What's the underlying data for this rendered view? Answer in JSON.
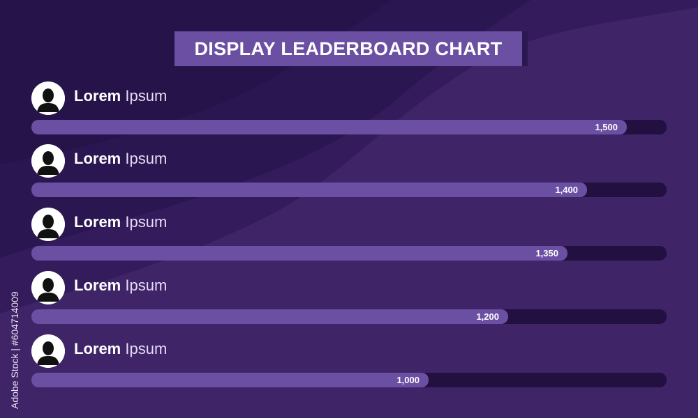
{
  "title": "DISPLAY LEADERBOARD CHART",
  "side_text": "Adobe Stock | #604714009",
  "colors": {
    "background": "#3f2468",
    "title_box": "#6a4fa3",
    "bar_fill": "#6a4fa3",
    "bar_track": "#221040",
    "text": "#ffffff"
  },
  "chart_data": {
    "type": "bar",
    "orientation": "horizontal",
    "title": "DISPLAY LEADERBOARD CHART",
    "xlim": [
      0,
      1600
    ],
    "categories": [
      "Lorem Ipsum",
      "Lorem Ipsum",
      "Lorem Ipsum",
      "Lorem Ipsum",
      "Lorem Ipsum"
    ],
    "values": [
      1500,
      1400,
      1350,
      1200,
      1000
    ],
    "value_labels": [
      "1,500",
      "1,400",
      "1,350",
      "1,200",
      "1,000"
    ],
    "entries": [
      {
        "first": "Lorem",
        "last": "Ipsum",
        "icon": "user-silhouette-icon",
        "value": 1500,
        "label": "1,500"
      },
      {
        "first": "Lorem",
        "last": "Ipsum",
        "icon": "user-silhouette-icon",
        "value": 1400,
        "label": "1,400"
      },
      {
        "first": "Lorem",
        "last": "Ipsum",
        "icon": "user-silhouette-icon",
        "value": 1350,
        "label": "1,350"
      },
      {
        "first": "Lorem",
        "last": "Ipsum",
        "icon": "user-silhouette-icon",
        "value": 1200,
        "label": "1,200"
      },
      {
        "first": "Lorem",
        "last": "Ipsum",
        "icon": "user-silhouette-icon",
        "value": 1000,
        "label": "1,000"
      }
    ]
  }
}
